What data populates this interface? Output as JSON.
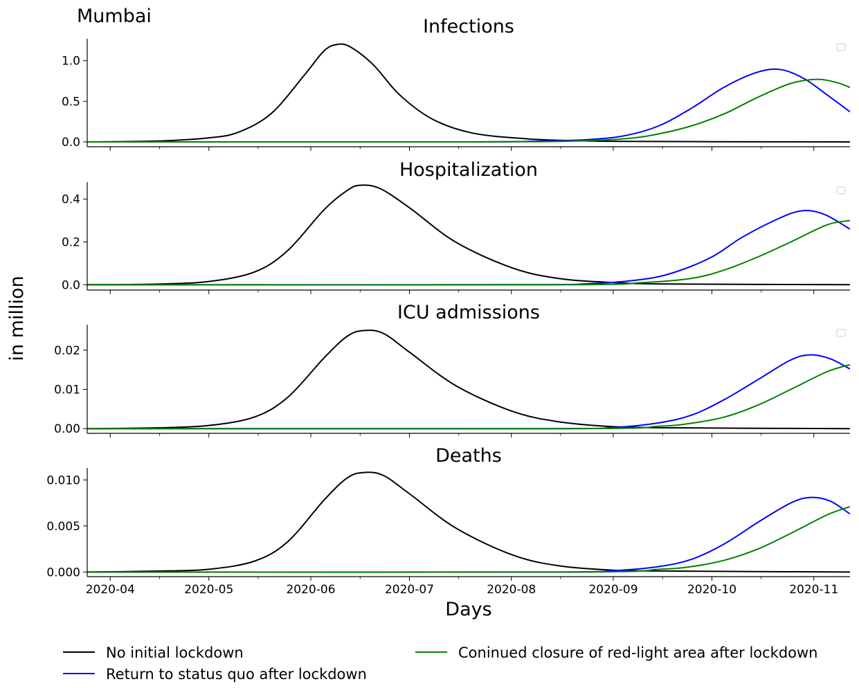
{
  "figure": {
    "city_label": "Mumbai",
    "ylabel": "in million",
    "xlabel": "Days"
  },
  "legend": {
    "entries": [
      {
        "label": "No initial lockdown",
        "color": "#000000"
      },
      {
        "label": "Return to status quo after lockdown",
        "color": "#0000ff"
      },
      {
        "label": "Coninued closure of red-light area after lockdown",
        "color": "#008000"
      }
    ]
  },
  "chart_data": [
    {
      "type": "line",
      "title": "Infections",
      "xlabel": "",
      "ylabel": "",
      "x_type": "date",
      "xlim": [
        "2020-03-25",
        "2020-11-12"
      ],
      "ylim": [
        -0.06,
        1.27
      ],
      "yticks": [
        0.0,
        0.5,
        1.0
      ],
      "ytick_labels": [
        "0.0",
        "0.5",
        "1.0"
      ],
      "grid": false,
      "series": [
        {
          "name": "No initial lockdown",
          "color": "#000000",
          "x": [
            "2020-03-25",
            "2020-04-15",
            "2020-05-01",
            "2020-05-10",
            "2020-05-20",
            "2020-05-30",
            "2020-06-05",
            "2020-06-09",
            "2020-06-13",
            "2020-06-20",
            "2020-06-28",
            "2020-07-08",
            "2020-07-20",
            "2020-08-05",
            "2020-08-20",
            "2020-09-05",
            "2020-10-01",
            "2020-11-12"
          ],
          "y": [
            0.0,
            0.01,
            0.05,
            0.12,
            0.35,
            0.82,
            1.12,
            1.2,
            1.17,
            0.95,
            0.58,
            0.28,
            0.11,
            0.04,
            0.015,
            0.006,
            0.002,
            0.0
          ]
        },
        {
          "name": "Return to status quo after lockdown",
          "color": "#0000ff",
          "x": [
            "2020-03-25",
            "2020-07-15",
            "2020-08-10",
            "2020-08-25",
            "2020-09-05",
            "2020-09-15",
            "2020-09-25",
            "2020-10-05",
            "2020-10-15",
            "2020-10-22",
            "2020-10-29",
            "2020-11-05",
            "2020-11-12"
          ],
          "y": [
            0.0,
            0.0,
            0.01,
            0.03,
            0.08,
            0.2,
            0.42,
            0.68,
            0.86,
            0.89,
            0.78,
            0.58,
            0.37
          ]
        },
        {
          "name": "Coninued closure of red-light area after lockdown",
          "color": "#008000",
          "x": [
            "2020-03-25",
            "2020-07-20",
            "2020-08-20",
            "2020-09-05",
            "2020-09-15",
            "2020-09-25",
            "2020-10-05",
            "2020-10-15",
            "2020-10-25",
            "2020-11-02",
            "2020-11-08",
            "2020-11-12"
          ],
          "y": [
            0.0,
            0.0,
            0.01,
            0.04,
            0.1,
            0.2,
            0.35,
            0.55,
            0.72,
            0.77,
            0.73,
            0.67
          ]
        }
      ]
    },
    {
      "type": "line",
      "title": "Hospitalization",
      "xlabel": "",
      "ylabel": "",
      "x_type": "date",
      "xlim": [
        "2020-03-25",
        "2020-11-12"
      ],
      "ylim": [
        -0.025,
        0.48
      ],
      "yticks": [
        0.0,
        0.2,
        0.4
      ],
      "ytick_labels": [
        "0.0",
        "0.2",
        "0.4"
      ],
      "grid": false,
      "series": [
        {
          "name": "No initial lockdown",
          "color": "#000000",
          "x": [
            "2020-03-25",
            "2020-04-15",
            "2020-05-01",
            "2020-05-15",
            "2020-05-25",
            "2020-06-05",
            "2020-06-12",
            "2020-06-16",
            "2020-06-22",
            "2020-07-01",
            "2020-07-15",
            "2020-08-01",
            "2020-08-15",
            "2020-09-01",
            "2020-09-20",
            "2020-11-12"
          ],
          "y": [
            0.0,
            0.003,
            0.015,
            0.06,
            0.16,
            0.35,
            0.44,
            0.465,
            0.45,
            0.36,
            0.2,
            0.08,
            0.03,
            0.01,
            0.003,
            0.0
          ]
        },
        {
          "name": "Return to status quo after lockdown",
          "color": "#0000ff",
          "x": [
            "2020-03-25",
            "2020-08-01",
            "2020-08-25",
            "2020-09-10",
            "2020-09-20",
            "2020-10-01",
            "2020-10-10",
            "2020-10-20",
            "2020-10-28",
            "2020-11-04",
            "2020-11-12"
          ],
          "y": [
            0.0,
            0.0,
            0.005,
            0.025,
            0.06,
            0.13,
            0.22,
            0.3,
            0.345,
            0.33,
            0.26
          ]
        },
        {
          "name": "Coninued closure of red-light area after lockdown",
          "color": "#008000",
          "x": [
            "2020-03-25",
            "2020-08-15",
            "2020-09-10",
            "2020-09-25",
            "2020-10-05",
            "2020-10-15",
            "2020-10-25",
            "2020-11-05",
            "2020-11-12"
          ],
          "y": [
            0.0,
            0.0,
            0.01,
            0.03,
            0.07,
            0.13,
            0.2,
            0.28,
            0.3
          ]
        }
      ]
    },
    {
      "type": "line",
      "title": "ICU admissions",
      "xlabel": "",
      "ylabel": "",
      "x_type": "date",
      "xlim": [
        "2020-03-25",
        "2020-11-12"
      ],
      "ylim": [
        -0.0012,
        0.0265
      ],
      "yticks": [
        0.0,
        0.01,
        0.02
      ],
      "ytick_labels": [
        "0.00",
        "0.01",
        "0.02"
      ],
      "grid": false,
      "series": [
        {
          "name": "No initial lockdown",
          "color": "#000000",
          "x": [
            "2020-03-25",
            "2020-04-15",
            "2020-05-01",
            "2020-05-15",
            "2020-05-25",
            "2020-06-05",
            "2020-06-12",
            "2020-06-17",
            "2020-06-23",
            "2020-07-01",
            "2020-07-15",
            "2020-08-01",
            "2020-08-15",
            "2020-09-01",
            "2020-09-20",
            "2020-11-12"
          ],
          "y": [
            0.0,
            0.0002,
            0.0008,
            0.003,
            0.008,
            0.018,
            0.0235,
            0.025,
            0.0243,
            0.0195,
            0.011,
            0.0045,
            0.0018,
            0.0005,
            0.0002,
            0.0
          ]
        },
        {
          "name": "Return to status quo after lockdown",
          "color": "#0000ff",
          "x": [
            "2020-03-25",
            "2020-08-10",
            "2020-09-01",
            "2020-09-15",
            "2020-09-25",
            "2020-10-05",
            "2020-10-15",
            "2020-10-25",
            "2020-10-31",
            "2020-11-06",
            "2020-11-12"
          ],
          "y": [
            0.0,
            0.0,
            0.0003,
            0.0015,
            0.0035,
            0.0075,
            0.0125,
            0.0175,
            0.0188,
            0.0178,
            0.0152
          ]
        },
        {
          "name": "Coninued closure of red-light area after lockdown",
          "color": "#008000",
          "x": [
            "2020-03-25",
            "2020-08-20",
            "2020-09-15",
            "2020-09-25",
            "2020-10-05",
            "2020-10-15",
            "2020-10-25",
            "2020-11-05",
            "2020-11-12"
          ],
          "y": [
            0.0,
            0.0,
            0.0006,
            0.0014,
            0.003,
            0.006,
            0.01,
            0.0145,
            0.0163
          ]
        }
      ]
    },
    {
      "type": "line",
      "title": "Deaths",
      "xlabel": "Days",
      "ylabel": "",
      "x_type": "date",
      "xlim": [
        "2020-03-25",
        "2020-11-12"
      ],
      "ylim": [
        -0.0005,
        0.0113
      ],
      "yticks": [
        0.0,
        0.005,
        0.01
      ],
      "ytick_labels": [
        "0.000",
        "0.005",
        "0.010"
      ],
      "xticks": [
        "2020-04-01",
        "2020-05-01",
        "2020-06-01",
        "2020-07-01",
        "2020-08-01",
        "2020-09-01",
        "2020-10-01",
        "2020-11-01"
      ],
      "xtick_labels": [
        "2020-04",
        "2020-05",
        "2020-06",
        "2020-07",
        "2020-08",
        "2020-09",
        "2020-10",
        "2020-11"
      ],
      "grid": false,
      "series": [
        {
          "name": "No initial lockdown",
          "color": "#000000",
          "x": [
            "2020-03-25",
            "2020-04-15",
            "2020-05-01",
            "2020-05-15",
            "2020-05-25",
            "2020-06-05",
            "2020-06-12",
            "2020-06-17",
            "2020-06-23",
            "2020-07-01",
            "2020-07-15",
            "2020-08-01",
            "2020-08-15",
            "2020-09-01",
            "2020-09-20",
            "2020-11-12"
          ],
          "y": [
            0.0,
            0.0001,
            0.0003,
            0.0012,
            0.0033,
            0.0078,
            0.0102,
            0.0108,
            0.0105,
            0.0085,
            0.0048,
            0.0019,
            0.0007,
            0.0002,
            0.0001,
            0.0
          ]
        },
        {
          "name": "Return to status quo after lockdown",
          "color": "#0000ff",
          "x": [
            "2020-03-25",
            "2020-08-10",
            "2020-09-01",
            "2020-09-15",
            "2020-09-25",
            "2020-10-05",
            "2020-10-15",
            "2020-10-25",
            "2020-10-31",
            "2020-11-06",
            "2020-11-12"
          ],
          "y": [
            0.0,
            0.0,
            0.00015,
            0.0006,
            0.0014,
            0.0031,
            0.0054,
            0.0075,
            0.0081,
            0.0077,
            0.0063
          ]
        },
        {
          "name": "Coninued closure of red-light area after lockdown",
          "color": "#008000",
          "x": [
            "2020-03-25",
            "2020-08-20",
            "2020-09-15",
            "2020-09-25",
            "2020-10-05",
            "2020-10-15",
            "2020-10-25",
            "2020-11-05",
            "2020-11-12"
          ],
          "y": [
            0.0,
            0.0,
            0.0003,
            0.0006,
            0.0013,
            0.0025,
            0.0042,
            0.0062,
            0.0071
          ]
        }
      ]
    }
  ]
}
